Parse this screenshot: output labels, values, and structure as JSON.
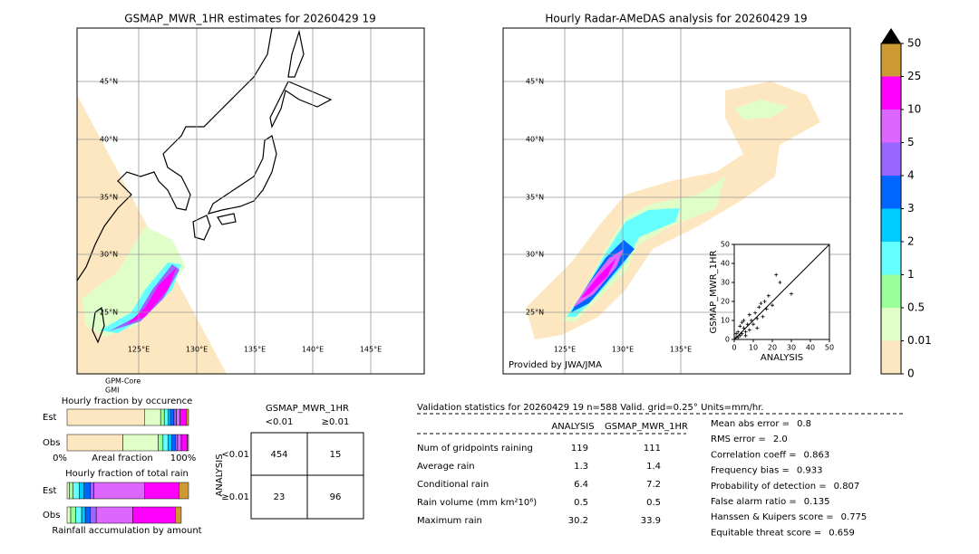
{
  "left_map": {
    "title": "GSMAP_MWR_1HR estimates for 20260429 19",
    "lat_labels": [
      "45°N",
      "40°N",
      "35°N",
      "30°N",
      "25°N"
    ],
    "lon_labels": [
      "125°E",
      "130°E",
      "135°E",
      "140°E",
      "145°E"
    ],
    "satellite": [
      "GPM-Core",
      "GMI"
    ]
  },
  "right_map": {
    "title": "Hourly Radar-AMeDAS analysis for 20260429 19",
    "lat_labels": [
      "45°N",
      "40°N",
      "35°N",
      "30°N",
      "25°N"
    ],
    "lon_labels": [
      "125°E",
      "130°E",
      "135°E"
    ],
    "credit": "Provided by JWA/JMA"
  },
  "scatter": {
    "type": "scatter",
    "xlabel": "ANALYSIS",
    "ylabel": "GSMAP_MWR_1HR",
    "xlim": [
      0,
      50
    ],
    "ylim": [
      0,
      50
    ],
    "xticks": [
      0,
      10,
      20,
      30,
      40,
      50
    ],
    "yticks": [
      0,
      10,
      20,
      30,
      40,
      50
    ],
    "x": [
      1,
      2,
      1,
      3,
      2,
      4,
      5,
      3,
      6,
      7,
      8,
      9,
      10,
      5,
      12,
      11,
      13,
      15,
      14,
      17,
      18,
      20,
      22,
      24,
      30,
      8,
      6,
      4,
      16,
      12
    ],
    "y": [
      1,
      1,
      3,
      2,
      4,
      3,
      6,
      7,
      4,
      8,
      5,
      10,
      8,
      10,
      11,
      14,
      17,
      12,
      19,
      16,
      23,
      18,
      34,
      30,
      24,
      13,
      2,
      9,
      20,
      6
    ]
  },
  "colorbar": {
    "labels": [
      0,
      0.01,
      0.5,
      1,
      2,
      3,
      4,
      5,
      10,
      25,
      50
    ],
    "colors": [
      "#fde7c0",
      "#e0ffc8",
      "#99ff99",
      "#66ffff",
      "#00ccff",
      "#0066ff",
      "#9966ff",
      "#dd66ff",
      "#ff00ff",
      "#cc9933"
    ],
    "extend_color": "#000000"
  },
  "fractions": {
    "title_occurrence": "Hourly fraction by occurence",
    "title_total": "Hourly fraction of total rain",
    "rows": [
      "Est",
      "Obs"
    ],
    "axis_left": "0%",
    "axis_label": "Areal fraction",
    "axis_right": "100%",
    "footer": "Rainfall accumulation by amount",
    "occurrence": [
      [
        0.64,
        0.13,
        0.03,
        0.03,
        0.02,
        0.03,
        0.02,
        0.03,
        0.05,
        0.02
      ],
      [
        0.46,
        0.29,
        0.04,
        0.04,
        0.03,
        0.03,
        0.02,
        0.03,
        0.05,
        0.01
      ]
    ],
    "total": [
      [
        0,
        0.02,
        0.03,
        0.05,
        0.04,
        0.05,
        0.03,
        0.42,
        0.28,
        0.08
      ],
      [
        0,
        0.03,
        0.04,
        0.05,
        0.03,
        0.04,
        0.05,
        0.3,
        0.35,
        0.05
      ]
    ]
  },
  "contingency": {
    "title": "GSMAP_MWR_1HR",
    "col_headers": [
      "<0.01",
      "≥0.01"
    ],
    "row_headers": [
      "<0.01",
      "≥0.01"
    ],
    "row_axis": "ANALYSIS",
    "cells": [
      [
        454,
        15
      ],
      [
        23,
        96
      ]
    ]
  },
  "validation": {
    "header": "Validation statistics for 20260429 19  n=588 Valid. grid=0.25° Units=mm/hr.",
    "columns": [
      "ANALYSIS",
      "GSMAP_MWR_1HR"
    ],
    "rows": [
      [
        "Num of gridpoints raining",
        119,
        111
      ],
      [
        "Average rain",
        1.3,
        1.4
      ],
      [
        "Conditional rain",
        6.4,
        7.2
      ],
      [
        "Rain volume (mm km²10⁶)",
        0.5,
        0.5
      ],
      [
        "Maximum rain",
        30.2,
        33.9
      ]
    ],
    "scores": [
      [
        "Mean abs error =",
        0.8
      ],
      [
        "RMS error =",
        {
          "value": 2,
          "label": "2.0"
        }
      ],
      [
        "Correlation coeff =",
        0.863
      ],
      [
        "Frequency bias =",
        0.933
      ],
      [
        "Probability of detection =",
        0.807
      ],
      [
        "False alarm ratio =",
        0.135
      ],
      [
        "Hanssen & Kuipers score =",
        0.775
      ],
      [
        "Equitable threat score =",
        0.659
      ]
    ]
  }
}
